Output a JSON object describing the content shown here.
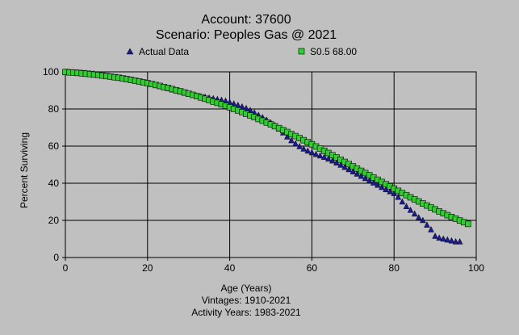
{
  "chart_data": {
    "type": "scatter",
    "title": "Account: 37600",
    "subtitle": "Scenario: Peoples Gas @ 2021",
    "xlabel": "Age (Years)",
    "ylabel": "Percent Surviving",
    "footnotes": [
      "Vintages: 1910-2021",
      "Activity Years: 1983-2021"
    ],
    "xlim": [
      0,
      100
    ],
    "ylim": [
      0,
      100
    ],
    "xticks": [
      0,
      20,
      40,
      60,
      80,
      100
    ],
    "yticks": [
      0,
      20,
      40,
      60,
      80,
      100
    ],
    "grid": true,
    "legend_position": "top",
    "series": [
      {
        "name": "Actual Data",
        "marker": "triangle",
        "color": "#1a1a8c",
        "points": [
          [
            0,
            100
          ],
          [
            1,
            99.9
          ],
          [
            2,
            99.8
          ],
          [
            3,
            99.7
          ],
          [
            4,
            99.6
          ],
          [
            5,
            99.4
          ],
          [
            6,
            99.2
          ],
          [
            7,
            99
          ],
          [
            8,
            98.6
          ],
          [
            9,
            98.2
          ],
          [
            10,
            97.8
          ],
          [
            11,
            97.5
          ],
          [
            12,
            97.1
          ],
          [
            13,
            96.8
          ],
          [
            14,
            96.5
          ],
          [
            15,
            96.1
          ],
          [
            16,
            95.7
          ],
          [
            17,
            95.2
          ],
          [
            18,
            94.8
          ],
          [
            19,
            94.3
          ],
          [
            20,
            93.8
          ],
          [
            21,
            93.3
          ],
          [
            22,
            92.7
          ],
          [
            23,
            92.2
          ],
          [
            24,
            91.6
          ],
          [
            25,
            91
          ],
          [
            26,
            90.4
          ],
          [
            27,
            89.8
          ],
          [
            28,
            89.2
          ],
          [
            29,
            88.6
          ],
          [
            30,
            88
          ],
          [
            31,
            87.5
          ],
          [
            32,
            87
          ],
          [
            33,
            86.7
          ],
          [
            34,
            86.4
          ],
          [
            35,
            86
          ],
          [
            36,
            85.6
          ],
          [
            37,
            85.2
          ],
          [
            38,
            84.8
          ],
          [
            39,
            84.3
          ],
          [
            40,
            83.6
          ],
          [
            41,
            82.8
          ],
          [
            42,
            82
          ],
          [
            43,
            81.2
          ],
          [
            44,
            80.3
          ],
          [
            45,
            79.3
          ],
          [
            46,
            78
          ],
          [
            47,
            76.7
          ],
          [
            48,
            75.4
          ],
          [
            49,
            74
          ],
          [
            50,
            72.6
          ],
          [
            51,
            71.1
          ],
          [
            52,
            69.3
          ],
          [
            53,
            67.2
          ],
          [
            54,
            65
          ],
          [
            55,
            63
          ],
          [
            56,
            61.3
          ],
          [
            57,
            59.8
          ],
          [
            58,
            58.5
          ],
          [
            59,
            57.4
          ],
          [
            60,
            56.5
          ],
          [
            61,
            55.6
          ],
          [
            62,
            54.8
          ],
          [
            63,
            54
          ],
          [
            64,
            53.1
          ],
          [
            65,
            52.1
          ],
          [
            66,
            51
          ],
          [
            67,
            49.8
          ],
          [
            68,
            48.6
          ],
          [
            69,
            47.4
          ],
          [
            70,
            46.2
          ],
          [
            71,
            45
          ],
          [
            72,
            43.8
          ],
          [
            73,
            42.6
          ],
          [
            74,
            41.4
          ],
          [
            75,
            40.2
          ],
          [
            76,
            39
          ],
          [
            77,
            37.8
          ],
          [
            78,
            36.6
          ],
          [
            79,
            35.5
          ],
          [
            80,
            34.5
          ],
          [
            81,
            32.5
          ],
          [
            82,
            30
          ],
          [
            83,
            27.5
          ],
          [
            84,
            25.5
          ],
          [
            85,
            23.5
          ],
          [
            86,
            21.5
          ],
          [
            87,
            20
          ],
          [
            88,
            17.5
          ],
          [
            89,
            15
          ],
          [
            90,
            11.5
          ],
          [
            91,
            10.5
          ],
          [
            92,
            10
          ],
          [
            93,
            9.5
          ],
          [
            94,
            9
          ],
          [
            95,
            8.5
          ],
          [
            96,
            8.5
          ]
        ]
      },
      {
        "name": "S0.5 68.00",
        "marker": "square",
        "color": "#33cc33",
        "points": [
          [
            0,
            99.9
          ],
          [
            1,
            99.7
          ],
          [
            2,
            99.6
          ],
          [
            3,
            99.4
          ],
          [
            4,
            99.2
          ],
          [
            5,
            99
          ],
          [
            6,
            98.8
          ],
          [
            7,
            98.5
          ],
          [
            8,
            98.3
          ],
          [
            9,
            98
          ],
          [
            10,
            97.7
          ],
          [
            11,
            97.4
          ],
          [
            12,
            97.1
          ],
          [
            13,
            96.8
          ],
          [
            14,
            96.4
          ],
          [
            15,
            96
          ],
          [
            16,
            95.6
          ],
          [
            17,
            95.2
          ],
          [
            18,
            94.8
          ],
          [
            19,
            94.3
          ],
          [
            20,
            93.9
          ],
          [
            21,
            93.4
          ],
          [
            22,
            92.9
          ],
          [
            23,
            92.4
          ],
          [
            24,
            91.8
          ],
          [
            25,
            91.3
          ],
          [
            26,
            90.7
          ],
          [
            27,
            90.1
          ],
          [
            28,
            89.5
          ],
          [
            29,
            88.9
          ],
          [
            30,
            88.2
          ],
          [
            31,
            87.6
          ],
          [
            32,
            86.9
          ],
          [
            33,
            86.2
          ],
          [
            34,
            85.5
          ],
          [
            35,
            84.8
          ],
          [
            36,
            84
          ],
          [
            37,
            83.3
          ],
          [
            38,
            82.5
          ],
          [
            39,
            81.7
          ],
          [
            40,
            80.9
          ],
          [
            41,
            80
          ],
          [
            42,
            79.2
          ],
          [
            43,
            78.3
          ],
          [
            44,
            77.4
          ],
          [
            45,
            76.5
          ],
          [
            46,
            75.6
          ],
          [
            47,
            74.6
          ],
          [
            48,
            73.7
          ],
          [
            49,
            72.7
          ],
          [
            50,
            71.7
          ],
          [
            51,
            70.7
          ],
          [
            52,
            69.7
          ],
          [
            53,
            68.6
          ],
          [
            54,
            67.6
          ],
          [
            55,
            66.5
          ],
          [
            56,
            65.4
          ],
          [
            57,
            64.3
          ],
          [
            58,
            63.2
          ],
          [
            59,
            62.1
          ],
          [
            60,
            61
          ],
          [
            61,
            59.8
          ],
          [
            62,
            58.7
          ],
          [
            63,
            57.5
          ],
          [
            64,
            56.3
          ],
          [
            65,
            55.1
          ],
          [
            66,
            53.9
          ],
          [
            67,
            52.7
          ],
          [
            68,
            51.5
          ],
          [
            69,
            50.3
          ],
          [
            70,
            49.1
          ],
          [
            71,
            47.9
          ],
          [
            72,
            46.7
          ],
          [
            73,
            45.5
          ],
          [
            74,
            44.3
          ],
          [
            75,
            43.1
          ],
          [
            76,
            41.9
          ],
          [
            77,
            40.7
          ],
          [
            78,
            39.5
          ],
          [
            79,
            38.3
          ],
          [
            80,
            37.1
          ],
          [
            81,
            35.9
          ],
          [
            82,
            34.7
          ],
          [
            83,
            33.6
          ],
          [
            84,
            32.4
          ],
          [
            85,
            31.3
          ],
          [
            86,
            30.2
          ],
          [
            87,
            29.1
          ],
          [
            88,
            28
          ],
          [
            89,
            26.9
          ],
          [
            90,
            25.9
          ],
          [
            91,
            24.8
          ],
          [
            92,
            23.8
          ],
          [
            93,
            22.8
          ],
          [
            94,
            21.8
          ],
          [
            95,
            20.9
          ],
          [
            96,
            19.9
          ],
          [
            97,
            19
          ],
          [
            98,
            18.1
          ]
        ]
      }
    ]
  }
}
